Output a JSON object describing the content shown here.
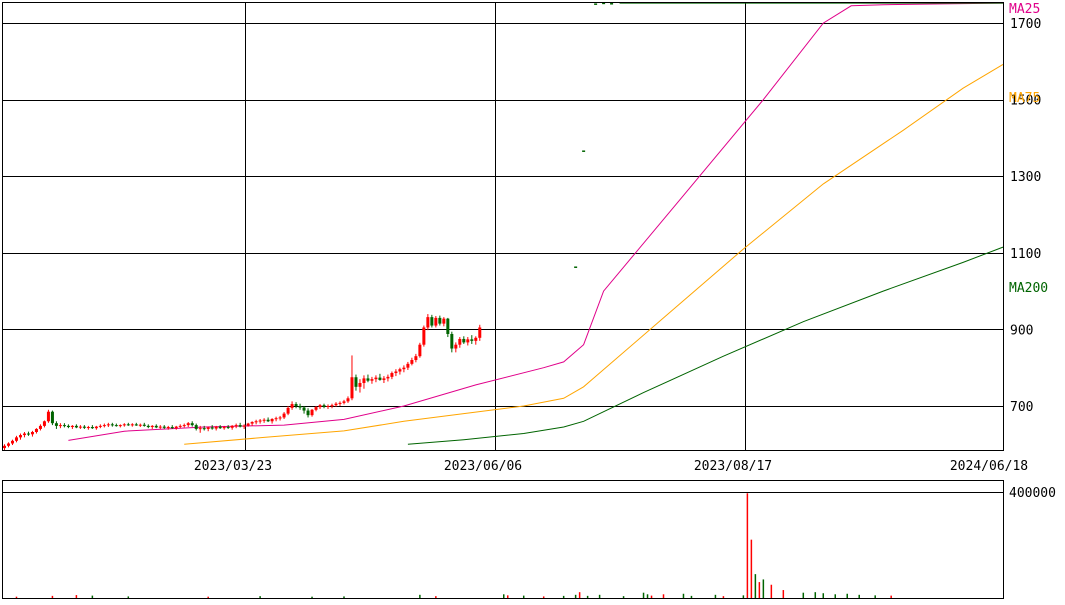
{
  "chart_data": {
    "type": "candlestick",
    "price_axis": {
      "ticks": [
        700,
        900,
        1100,
        1300,
        1500,
        1700
      ],
      "tick_labels": [
        "700",
        "900",
        "1100",
        "1300",
        "1500",
        "1700"
      ],
      "range": [
        585,
        1755
      ]
    },
    "volume_axis": {
      "ticks": [
        400000
      ],
      "tick_labels": [
        "400000"
      ],
      "range": [
        0,
        445000
      ]
    },
    "x_axis": {
      "tick_labels": [
        "2023/03/23",
        "2023/06/06",
        "2023/08/17",
        "2024/06/18"
      ]
    },
    "legend": [
      {
        "name": "MA25",
        "color": "#e0008a"
      },
      {
        "name": "MA75",
        "color": "#ffa500"
      },
      {
        "name": "MA200",
        "color": "#006400"
      }
    ],
    "colors": {
      "up": "#ff0000",
      "down": "#006400",
      "ma25": "#e0008a",
      "ma75": "#ffa500",
      "ma200": "#006400",
      "grid": "#000000"
    },
    "candles": [
      [
        590,
        600,
        585,
        596
      ],
      [
        596,
        605,
        592,
        602
      ],
      [
        602,
        612,
        598,
        609
      ],
      [
        609,
        622,
        605,
        618
      ],
      [
        618,
        628,
        612,
        624
      ],
      [
        624,
        632,
        618,
        628
      ],
      [
        628,
        633,
        622,
        626
      ],
      [
        626,
        635,
        620,
        632
      ],
      [
        632,
        642,
        628,
        640
      ],
      [
        640,
        652,
        636,
        648
      ],
      [
        648,
        662,
        644,
        660
      ],
      [
        660,
        690,
        656,
        685
      ],
      [
        685,
        688,
        650,
        655
      ],
      [
        655,
        660,
        640,
        648
      ],
      [
        648,
        655,
        642,
        650
      ],
      [
        650,
        655,
        644,
        648
      ],
      [
        648,
        652,
        642,
        645
      ],
      [
        645,
        650,
        640,
        648
      ],
      [
        648,
        652,
        642,
        644
      ],
      [
        644,
        650,
        640,
        646
      ],
      [
        646,
        650,
        640,
        643
      ],
      [
        643,
        648,
        638,
        645
      ],
      [
        645,
        650,
        640,
        642
      ],
      [
        642,
        648,
        638,
        646
      ],
      [
        646,
        652,
        642,
        648
      ],
      [
        648,
        654,
        644,
        650
      ],
      [
        650,
        656,
        645,
        652
      ],
      [
        652,
        656,
        646,
        650
      ],
      [
        650,
        654,
        646,
        648
      ],
      [
        648,
        652,
        644,
        650
      ],
      [
        650,
        655,
        646,
        652
      ],
      [
        652,
        656,
        648,
        650
      ],
      [
        650,
        655,
        646,
        652
      ],
      [
        652,
        656,
        648,
        649
      ],
      [
        649,
        654,
        645,
        651
      ],
      [
        651,
        656,
        646,
        648
      ],
      [
        648,
        652,
        642,
        645
      ],
      [
        645,
        650,
        640,
        648
      ],
      [
        648,
        652,
        642,
        644
      ],
      [
        644,
        650,
        640,
        646
      ],
      [
        646,
        650,
        640,
        643
      ],
      [
        643,
        648,
        638,
        645
      ],
      [
        645,
        650,
        640,
        642
      ],
      [
        642,
        648,
        638,
        646
      ],
      [
        646,
        652,
        642,
        648
      ],
      [
        648,
        654,
        644,
        650
      ],
      [
        650,
        658,
        645,
        655
      ],
      [
        655,
        660,
        646,
        650
      ],
      [
        650,
        654,
        636,
        640
      ],
      [
        640,
        648,
        630,
        642
      ],
      [
        642,
        648,
        636,
        640
      ],
      [
        640,
        646,
        634,
        644
      ],
      [
        644,
        650,
        638,
        641
      ],
      [
        641,
        648,
        636,
        646
      ],
      [
        646,
        650,
        640,
        642
      ],
      [
        642,
        648,
        638,
        645
      ],
      [
        645,
        650,
        640,
        643
      ],
      [
        643,
        650,
        638,
        648
      ],
      [
        648,
        654,
        642,
        650
      ],
      [
        650,
        656,
        644,
        646
      ],
      [
        646,
        652,
        640,
        649
      ],
      [
        649,
        656,
        646,
        654
      ],
      [
        654,
        660,
        648,
        658
      ],
      [
        658,
        664,
        652,
        660
      ],
      [
        660,
        666,
        654,
        662
      ],
      [
        662,
        668,
        656,
        664
      ],
      [
        664,
        670,
        658,
        660
      ],
      [
        660,
        668,
        654,
        666
      ],
      [
        666,
        672,
        660,
        668
      ],
      [
        668,
        674,
        662,
        670
      ],
      [
        670,
        684,
        666,
        680
      ],
      [
        680,
        700,
        676,
        695
      ],
      [
        695,
        712,
        690,
        705
      ],
      [
        705,
        710,
        694,
        700
      ],
      [
        700,
        706,
        690,
        696
      ],
      [
        696,
        700,
        680,
        688
      ],
      [
        688,
        694,
        670,
        676
      ],
      [
        676,
        692,
        672,
        690
      ],
      [
        690,
        700,
        686,
        697
      ],
      [
        697,
        705,
        692,
        702
      ],
      [
        702,
        706,
        694,
        698
      ],
      [
        698,
        704,
        692,
        700
      ],
      [
        700,
        706,
        694,
        702
      ],
      [
        702,
        710,
        698,
        706
      ],
      [
        706,
        712,
        700,
        708
      ],
      [
        708,
        716,
        704,
        712
      ],
      [
        712,
        725,
        708,
        720
      ],
      [
        720,
        832,
        715,
        775
      ],
      [
        775,
        782,
        740,
        750
      ],
      [
        750,
        770,
        735,
        760
      ],
      [
        760,
        780,
        745,
        772
      ],
      [
        772,
        782,
        762,
        766
      ],
      [
        766,
        776,
        758,
        770
      ],
      [
        770,
        780,
        762,
        774
      ],
      [
        774,
        784,
        766,
        768
      ],
      [
        768,
        778,
        760,
        772
      ],
      [
        772,
        782,
        764,
        776
      ],
      [
        776,
        790,
        770,
        786
      ],
      [
        786,
        796,
        778,
        790
      ],
      [
        790,
        800,
        782,
        796
      ],
      [
        796,
        806,
        788,
        800
      ],
      [
        800,
        815,
        794,
        810
      ],
      [
        810,
        826,
        806,
        820
      ],
      [
        820,
        836,
        814,
        830
      ],
      [
        830,
        865,
        826,
        860
      ],
      [
        860,
        910,
        855,
        905
      ],
      [
        905,
        940,
        898,
        932
      ],
      [
        932,
        938,
        905,
        910
      ],
      [
        910,
        935,
        905,
        930
      ],
      [
        930,
        936,
        910,
        915
      ],
      [
        915,
        932,
        908,
        928
      ],
      [
        928,
        930,
        880,
        888
      ],
      [
        888,
        894,
        840,
        850
      ],
      [
        850,
        866,
        840,
        860
      ],
      [
        860,
        880,
        852,
        875
      ],
      [
        875,
        882,
        862,
        866
      ],
      [
        866,
        880,
        858,
        874
      ],
      [
        874,
        885,
        862,
        870
      ],
      [
        870,
        882,
        860,
        878
      ],
      [
        878,
        912,
        870,
        905
      ]
    ],
    "gap_trades": [
      {
        "day": 143,
        "price": 1063
      },
      {
        "day": 145,
        "price": 1366
      },
      {
        "day": 148,
        "price": 1750
      },
      {
        "day": 150,
        "price": 1752
      },
      {
        "day": 152,
        "price": 1751
      }
    ],
    "flat_after_gap": {
      "from_day": 154,
      "to_day": 250,
      "price": 1752
    },
    "ma25": [
      [
        16,
        610
      ],
      [
        30,
        634
      ],
      [
        50,
        645
      ],
      [
        70,
        650
      ],
      [
        85,
        665
      ],
      [
        100,
        700
      ],
      [
        118,
        755
      ],
      [
        135,
        800
      ],
      [
        140,
        815
      ],
      [
        145,
        860
      ],
      [
        150,
        1000
      ],
      [
        170,
        1250
      ],
      [
        190,
        1500
      ],
      [
        205,
        1700
      ],
      [
        212,
        1745
      ],
      [
        220,
        1748
      ],
      [
        235,
        1750
      ],
      [
        250,
        1752
      ]
    ],
    "ma75": [
      [
        45,
        600
      ],
      [
        65,
        618
      ],
      [
        85,
        635
      ],
      [
        100,
        660
      ],
      [
        115,
        680
      ],
      [
        130,
        700
      ],
      [
        140,
        720
      ],
      [
        145,
        750
      ],
      [
        165,
        930
      ],
      [
        185,
        1110
      ],
      [
        205,
        1280
      ],
      [
        225,
        1420
      ],
      [
        240,
        1530
      ],
      [
        250,
        1592
      ]
    ],
    "ma200": [
      [
        101,
        600
      ],
      [
        115,
        612
      ],
      [
        130,
        628
      ],
      [
        140,
        645
      ],
      [
        145,
        660
      ],
      [
        160,
        735
      ],
      [
        180,
        830
      ],
      [
        200,
        920
      ],
      [
        220,
        1000
      ],
      [
        240,
        1075
      ],
      [
        250,
        1115
      ]
    ],
    "volumes": [
      [
        3,
        5000
      ],
      [
        12,
        8000
      ],
      [
        18,
        11000
      ],
      [
        22,
        9000
      ],
      [
        31,
        6000
      ],
      [
        51,
        5000
      ],
      [
        64,
        7000
      ],
      [
        77,
        5000
      ],
      [
        85,
        6000
      ],
      [
        104,
        12000
      ],
      [
        108,
        7000
      ],
      [
        125,
        14000
      ],
      [
        126,
        10000
      ],
      [
        130,
        9000
      ],
      [
        135,
        6000
      ],
      [
        140,
        8000
      ],
      [
        143,
        12000
      ],
      [
        144,
        22000
      ],
      [
        146,
        8000
      ],
      [
        149,
        12000
      ],
      [
        155,
        7000
      ],
      [
        160,
        20000
      ],
      [
        161,
        14000
      ],
      [
        162,
        9000
      ],
      [
        165,
        14000
      ],
      [
        170,
        16000
      ],
      [
        172,
        8000
      ],
      [
        178,
        12000
      ],
      [
        180,
        7000
      ],
      [
        185,
        10000
      ],
      [
        186,
        395000
      ],
      [
        187,
        220000
      ],
      [
        188,
        90000
      ],
      [
        189,
        60000
      ],
      [
        190,
        70000
      ],
      [
        192,
        50000
      ],
      [
        195,
        30000
      ],
      [
        200,
        20000
      ],
      [
        203,
        22000
      ],
      [
        205,
        18000
      ],
      [
        208,
        14000
      ],
      [
        211,
        16000
      ],
      [
        214,
        12000
      ],
      [
        218,
        10000
      ],
      [
        222,
        9000
      ]
    ]
  }
}
